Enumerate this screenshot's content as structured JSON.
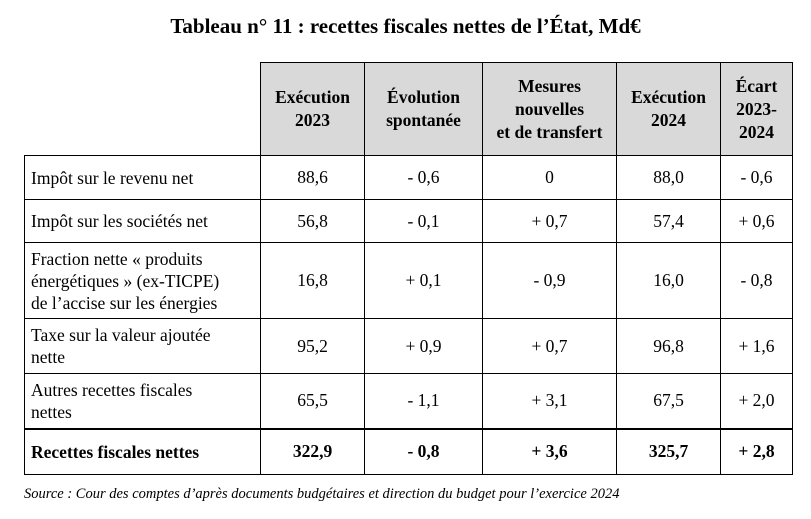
{
  "title": "Tableau n° 11 : recettes fiscales nettes de l’État, Md€",
  "headers": [
    [
      "Exécution",
      "2023"
    ],
    [
      "Évolution",
      "spontanée"
    ],
    [
      "Mesures",
      "nouvelles",
      "et de transfert"
    ],
    [
      "Exécution",
      "2024"
    ],
    [
      "Écart",
      "2023-",
      "2024"
    ]
  ],
  "rows": [
    {
      "label": [
        "Impôt sur le revenu net"
      ],
      "values": [
        "88,6",
        "- 0,6",
        "0",
        "88,0",
        "- 0,6"
      ]
    },
    {
      "label": [
        "Impôt sur les sociétés net"
      ],
      "values": [
        "56,8",
        "- 0,1",
        "+ 0,7",
        "57,4",
        "+ 0,6"
      ]
    },
    {
      "label": [
        "Fraction nette « produits",
        "énergétiques » (ex-TICPE)",
        "de l’accise sur les énergies"
      ],
      "values": [
        "16,8",
        "+ 0,1",
        "- 0,9",
        "16,0",
        "- 0,8"
      ]
    },
    {
      "label": [
        "Taxe sur la valeur ajoutée",
        "nette"
      ],
      "values": [
        "95,2",
        "+ 0,9",
        "+ 0,7",
        "96,8",
        "+ 1,6"
      ]
    },
    {
      "label": [
        "Autres recettes fiscales",
        "nettes"
      ],
      "values": [
        "65,5",
        "- 1,1",
        "+ 3,1",
        "67,5",
        "+ 2,0"
      ]
    }
  ],
  "total": {
    "label": "Recettes fiscales nettes",
    "values": [
      "322,9",
      "- 0,8",
      "+ 3,6",
      "325,7",
      "+ 2,8"
    ]
  },
  "source": "Source : Cour des comptes d’après documents budgétaires et direction du budget pour l’exercice 2024"
}
